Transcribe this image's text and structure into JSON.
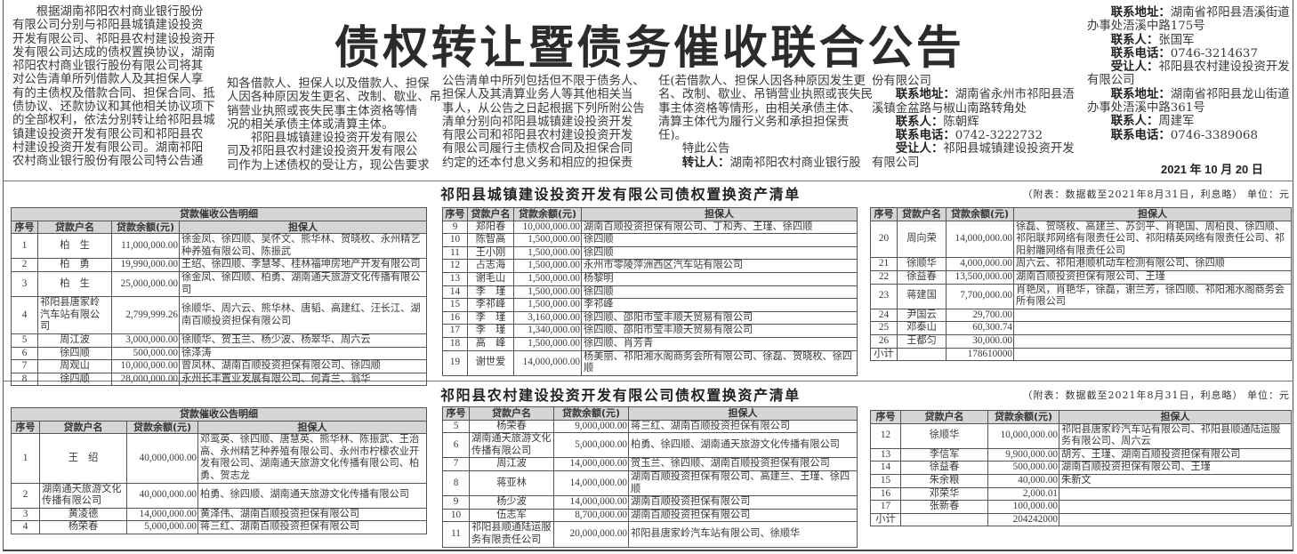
{
  "title": "债权转让暨债务催收联合公告",
  "columns": [
    [
      "　　根据湖南祁阳农村商业银行股份",
      "有限公司分别与祁阳县城镇建设投资",
      "开发有限公司、祁阳县农村建设投资开",
      "发有限公司达成的债权置换协议，湖南",
      "祁阳农村商业银行股份有限公司将其",
      "对公告清单所列借款人及其担保人享",
      "有的主债权及借款合同、担保合同、抵",
      "债协议、还款协议和其他相关协议项下",
      "的全部权利，依法分别转让给祁阳县城",
      "镇建设投资开发有限公司和祁阳县农",
      "村建设投资开发有限公司。湖南祁阳",
      "农村商业银行股份有限公司特公告通"
    ],
    [
      "知各借款人、担保人以及借款人、担保",
      "人因各种原因发生更名、改制、歇业、吊",
      "销营业执照或丧失民事主体资格等情",
      "况的相关承债主体或清算主体。",
      "　　祁阳县城镇建设投资开发有限公",
      "司及祁阳县农村建设投资开发有限公",
      "司作为上述债权的受让方，现公告要求"
    ],
    [
      "公告清单中所列包括但不限于债务人、",
      "担保人及其清算业务人等其他相关当",
      "事人，从公告之日起根据下列所附公告",
      "清单分别向祁阳县城镇建设投资开发",
      "有限公司和祁阳县农村建设投资开发",
      "有限公司履行主债权合同及担保合同",
      "约定的还本付息义务和相应的担保责"
    ],
    [
      "任(若借款人、担保人因各种原因发生更",
      "名、改制、歇业、吊销营业执照或丧失民",
      "事主体资格等情形，由相关承债主体、",
      "清算主体代为履行义务和承担担保责",
      "任)。",
      "　　特此公告",
      {
        "label": "　　转让人：",
        "text": "湖南祁阳农村商业银行股"
      }
    ],
    [
      "份有限公司",
      {
        "label": "　　联系地址：",
        "text": "湖南省永州市祁阳县浯"
      },
      "溪镇金盆路与椒山南路转角处",
      {
        "label": "　　联系人：",
        "text": "陈朝辉"
      },
      {
        "label": "　　联系电话：",
        "text": "0742-3222732"
      },
      {
        "label": "　　受让人：",
        "text": "祁阳县城镇建设投资开发"
      },
      "有限公司"
    ],
    [
      {
        "label": "　　联系地址：",
        "text": "湖南省祁阳县浯溪街道"
      },
      "办事处浯溪中路175号",
      {
        "label": "　　联系人：",
        "text": "张国军"
      },
      {
        "label": "　　联系电话：",
        "text": "0746-3214637"
      },
      {
        "label": "　　受让人：",
        "text": "祁阳县农村建设投资开发"
      },
      "有限公司",
      {
        "label": "　　联系地址：",
        "text": "湖南省祁阳县龙山街道"
      },
      "办事处浯溪中路361号",
      {
        "label": "　　联系人：",
        "text": "周建军"
      },
      {
        "label": "　　联系电话：",
        "text": "0746-3389068"
      }
    ]
  ],
  "date": "2021 年 10 月 20 日",
  "sections": [
    {
      "title": "祁阳县城镇建设投资开发有限公司债权置换资产清单",
      "note": "（附表：数据截至2021年8月31日，利息略） 单位：元",
      "tables": [
        {
          "caption": "贷款催收公告明细",
          "headers": [
            "序号",
            "贷款户名",
            "贷款余额(元)",
            "担保人"
          ],
          "rows": [
            [
              "1",
              "柏　生",
              "11,000,000.00",
              "徐金凤、徐四顺、吴怀文、熊华林、贺晓枚、永州精艺种养殖有限公司、陈振武"
            ],
            [
              "2",
              "柏　勇",
              "19,990,000.00",
              "王绍、徐四顺、李慧琴、桂林福坤房地产开发有限公司"
            ],
            [
              "3",
              "柏　生",
              "25,000,000.00",
              "徐金凤、徐四顺、柏勇、湖南通天旅游文化传播有限公司"
            ],
            [
              "4",
              "祁阳县唐家岭汽车站有限公司",
              "2,799,999.26",
              "徐顺华、周六云、熊华林、唐韬、高建红、汪长江、湖南百顺投资担保有限公司"
            ],
            [
              "5",
              "周江波",
              "3,000,000.00",
              "徐顺华、贺玉兰、杨少波、杨翠华、周六云"
            ],
            [
              "6",
              "徐四顺",
              "500,000.00",
              "徐泽涛"
            ],
            [
              "7",
              "周观山",
              "10,000,000.00",
              "曾凤林、湖南百顺投资担保有限公司、徐四顺"
            ],
            [
              "8",
              "徐四顺",
              "28,000,000.00",
              "永州长丰置业发展有限公司、何青兰、翁华"
            ]
          ]
        },
        {
          "headers": [
            "序号",
            "贷款户名",
            "贷款余额(元)",
            "担保人"
          ],
          "rows": [
            [
              "9",
              "郑阳春",
              "10,000,000.00",
              "湖南百顺投资担保有限公司、丁和秀、王瑾、徐四顺"
            ],
            [
              "10",
              "陈智高",
              "1,500,000.00",
              "徐四顺"
            ],
            [
              "11",
              "王小刚",
              "1,500,000.00",
              "徐四顺"
            ],
            [
              "12",
              "占志海",
              "1,500,000.00",
              "永州市零陵萍洲西区汽车站有限公司"
            ],
            [
              "13",
              "谢毛山",
              "1,500,000.00",
              "杨黎明"
            ],
            [
              "14",
              "李　瑾",
              "1,500,000.00",
              "徐四顺"
            ],
            [
              "15",
              "李祁峰",
              "1,500,000.00",
              "李祁峰"
            ],
            [
              "16",
              "李　瑾",
              "3,160,000.00",
              "徐四顺、邵阳市莹丰顺天贸易有限公司"
            ],
            [
              "17",
              "李　瑾",
              "1,340,000.00",
              "徐四顺、邵阳市莹丰顺天贸易有限公司"
            ],
            [
              "18",
              "高　峰",
              "1,500,000.00",
              "徐四顺、肖芳青"
            ],
            [
              "19",
              "谢世爱",
              "14,000,000.00",
              "杨美丽、祁阳湘水阁商务会所有限公司、徐磊、贺晓枚、徐四顺"
            ]
          ]
        },
        {
          "headers": [
            "序号",
            "贷款户名",
            "贷款余额(元)",
            "担保人"
          ],
          "rows": [
            [
              "20",
              "周向荣",
              "14,000,000.00",
              "徐磊、贺晓枚、高建兰、苏剑平、肖艳国、周柏良、徐四顺、祁阳联邦网络有限责任公司、祁阳精英网络有限责任公司、祁阳射雕网络有限责任公司"
            ],
            [
              "21",
              "徐顺华",
              "4,000,000.00",
              "周六云、祁阳港顺机动车检测有限公司、徐四顺"
            ],
            [
              "22",
              "徐益春",
              "13,500,000.00",
              "湖南百顺投资担保有限公司、王瑾"
            ],
            [
              "23",
              "蒋建国",
              "7,700,000.00",
              "肖艳凤，肖艳华，徐磊，谢兰芳，徐四顺、祁阳湘水阁商务会所有限公司"
            ],
            [
              "24",
              "尹国云",
              "29,700.00",
              ""
            ],
            [
              "25",
              "邓泰山",
              "60,300.74",
              ""
            ],
            [
              "26",
              "王都匀",
              "30,000.00",
              ""
            ],
            [
              "小计",
              "",
              "178610000",
              ""
            ]
          ]
        }
      ]
    },
    {
      "title": "祁阳县农村建设投资开发有限公司债权置换资产清单",
      "note": "（附表：数据截至2021年8月31日，利息略） 单位：元",
      "tables": [
        {
          "caption": "贷款催收公告明细",
          "headers": [
            "序号",
            "贷款户名",
            "贷款余额(元)",
            "担保人"
          ],
          "rows": [
            [
              "1",
              "王　绍",
              "40,000,000.00",
              "邓鸾英、徐四顺、唐慧英、熊华林、陈振武、王治高、永州精艺种养殖有限公司、永州市柠檬农业开发有限公司、湖南通天旅游文化传播有限公司、柏勇、贺志龙"
            ],
            [
              "2",
              "湖南通天旅游文化传播有限公司",
              "40,000,000.00",
              "柏勇、徐四顺、湖南通天旅游文化传播有限公司"
            ],
            [
              "3",
              "黄凌德",
              "14,000,000.00",
              "黄泽伟、湖南百顺投资担保有限公司"
            ],
            [
              "4",
              "杨荣春",
              "5,000,000.00",
              "蒋三红、湖南百顺投资担保有限公司"
            ]
          ]
        },
        {
          "headers": [
            "序号",
            "贷款户名",
            "贷款余额(元)",
            "担保人"
          ],
          "rows": [
            [
              "5",
              "杨荣春",
              "9,000,000.00",
              "蒋三红、湖南百顺投资担保有限公司"
            ],
            [
              "6",
              "湖南通天旅游文化传播有限公司",
              "5,000,000.00",
              "柏勇、徐四顺、湖南通天旅游文化传播有限公司"
            ],
            [
              "7",
              "周江波",
              "14,000,000.00",
              "贺玉兰、徐四顺、湖南百顺投资担保有限公司"
            ],
            [
              "8",
              "蒋亚林",
              "14,000,000.00",
              "湖南百顺投资担保有限公司、高建兰、王瑾、徐四顺"
            ],
            [
              "9",
              "杨少波",
              "14,000,000.00",
              "湖南百顺投资担保有限公司"
            ],
            [
              "10",
              "伍志军",
              "8,700,000.00",
              "湖南百顺投资担保有限公司"
            ],
            [
              "11",
              "祁阳县顺通陆运服务有限责任公司",
              "20,000,000.00",
              "祁阳县唐家岭汽车站有限公司、徐顺华"
            ]
          ]
        },
        {
          "headers": [
            "序号",
            "贷款户名",
            "贷款余额(元)",
            "担保人"
          ],
          "rows": [
            [
              "12",
              "徐顺华",
              "10,000,000.00",
              "祁阳县唐家岭汽车站有限公司、祁阳县顺通陆运服务有限公司、周六云"
            ],
            [
              "13",
              "李信军",
              "9,900,000.00",
              "胡芳、王瑾、湖南百顺投资担保有限公司"
            ],
            [
              "14",
              "徐益春",
              "500,000.00",
              "湖南百顺投资担保有限公司、王瑾"
            ],
            [
              "15",
              "朱余粮",
              "40,000.00",
              "朱新文"
            ],
            [
              "16",
              "邓荣华",
              "2,000.01",
              ""
            ],
            [
              "17",
              "张新春",
              "100,000.00",
              ""
            ],
            [
              "小计",
              "",
              "204242000",
              ""
            ]
          ]
        }
      ]
    }
  ]
}
